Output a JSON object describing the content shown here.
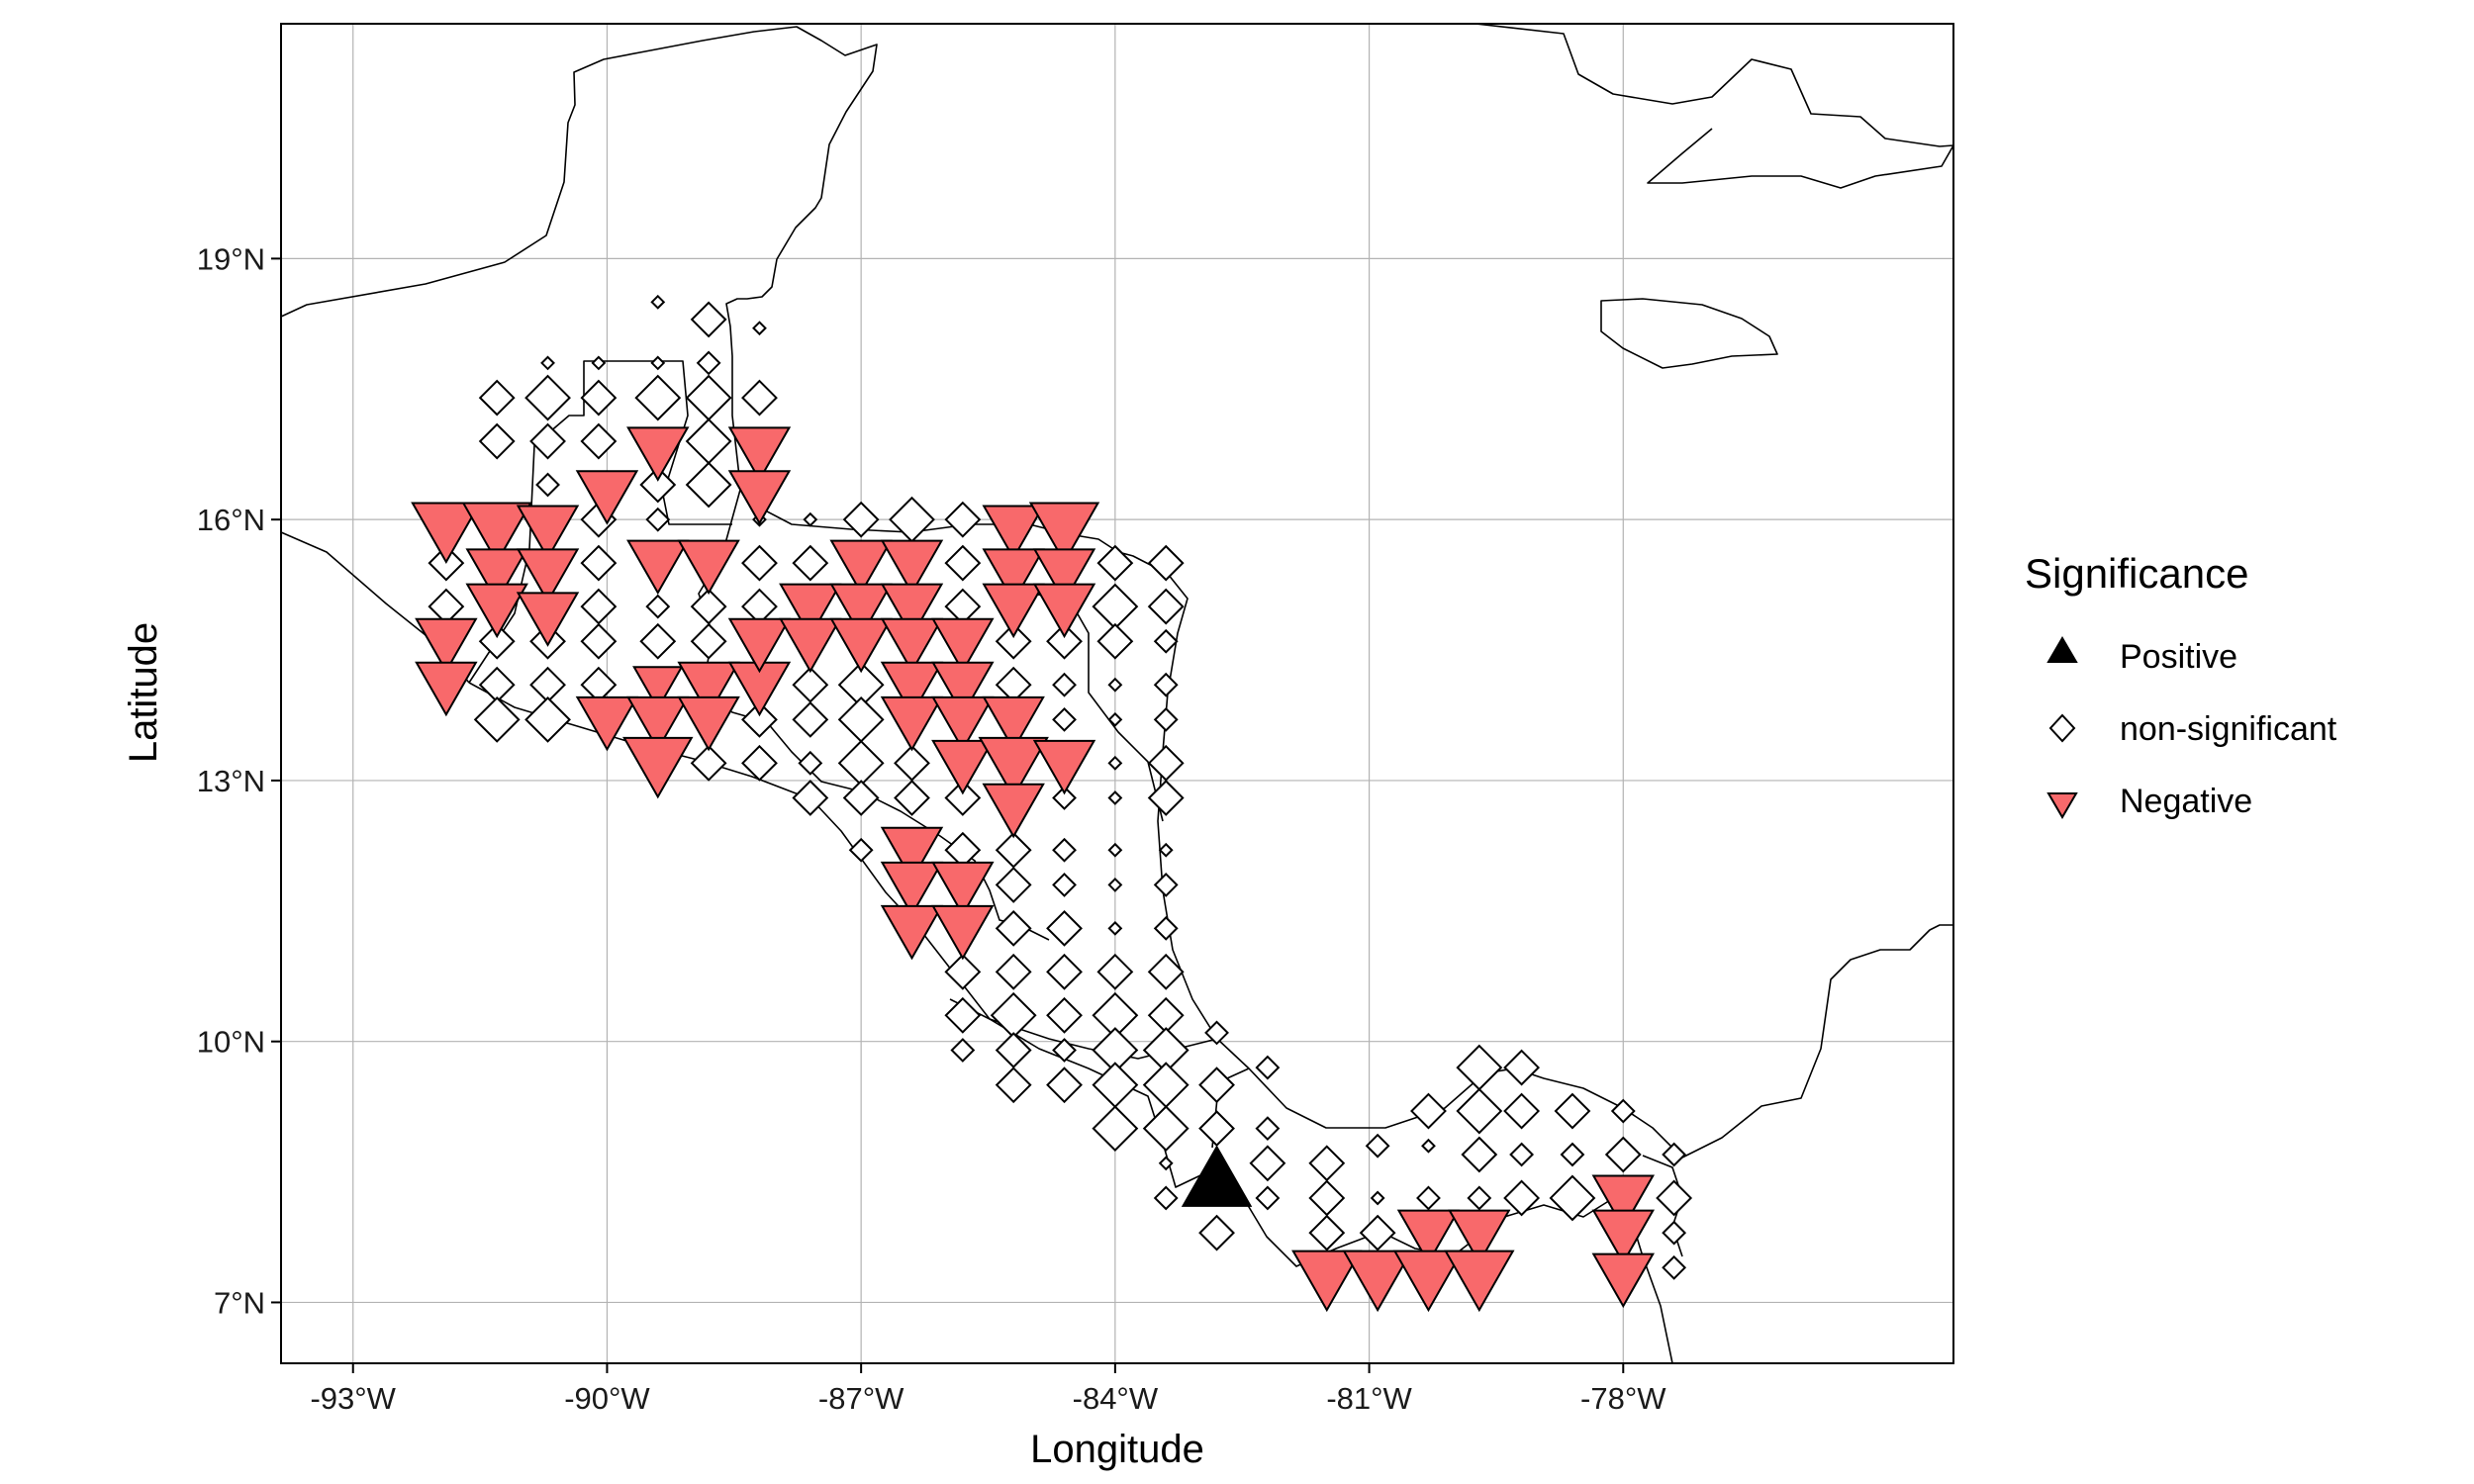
{
  "map": {
    "xlabel": "Longitude",
    "ylabel": "Latitude",
    "x_ticks": [
      {
        "value": -93,
        "label": "-93°W"
      },
      {
        "value": -90,
        "label": "-90°W"
      },
      {
        "value": -87,
        "label": "-87°W"
      },
      {
        "value": -84,
        "label": "-84°W"
      },
      {
        "value": -81,
        "label": "-81°W"
      },
      {
        "value": -78,
        "label": "-78°W"
      }
    ],
    "y_ticks": [
      {
        "value": 7,
        "label": "7°N"
      },
      {
        "value": 10,
        "label": "10°N"
      },
      {
        "value": 13,
        "label": "13°N"
      },
      {
        "value": 16,
        "label": "16°N"
      },
      {
        "value": 19,
        "label": "19°N"
      }
    ],
    "xlim": [
      -93.85,
      -74.1
    ],
    "ylim": [
      6.3,
      21.7
    ],
    "grid": true,
    "coastline_color": "#000000",
    "colors": {
      "positive": "#000000",
      "nonsignificant": "#ffffff",
      "negative": "#f8696b",
      "outline": "#000000",
      "grid": "#b3b3b3"
    },
    "legend": {
      "title": "Significance",
      "placement": "right",
      "items": [
        {
          "label": "Positive",
          "shape": "triangle-up",
          "color": "#000000"
        },
        {
          "label": "non-significant",
          "shape": "diamond",
          "color": "#ffffff"
        },
        {
          "label": "Negative",
          "shape": "triangle-down",
          "color": "#f8696b"
        }
      ]
    }
  },
  "chart_data": {
    "type": "scatter",
    "xlabel": "Longitude",
    "ylabel": "Latitude",
    "xlim": [
      -93.85,
      -74.1
    ],
    "ylim": [
      6.3,
      21.7
    ],
    "grid": true,
    "legend_title": "Significance",
    "legend_position": "right",
    "size_levels": [
      1,
      2,
      3,
      4,
      5
    ],
    "series": [
      {
        "name": "Positive",
        "marker": "triangle-up",
        "points": [
          [
            -82.8,
            8.4,
            5
          ]
        ]
      },
      {
        "name": "Negative",
        "marker": "triangle-down",
        "points": [
          [
            -91.9,
            15.9,
            5
          ],
          [
            -91.3,
            15.9,
            5
          ],
          [
            -90.7,
            15.9,
            4
          ],
          [
            -91.3,
            15.4,
            4
          ],
          [
            -90.7,
            15.4,
            4
          ],
          [
            -91.3,
            15.0,
            4
          ],
          [
            -90.7,
            14.9,
            4
          ],
          [
            -91.9,
            14.6,
            4
          ],
          [
            -91.9,
            14.1,
            4
          ],
          [
            -89.4,
            16.8,
            4
          ],
          [
            -88.2,
            16.8,
            4
          ],
          [
            -90.0,
            16.3,
            4
          ],
          [
            -88.2,
            16.3,
            4
          ],
          [
            -89.4,
            15.5,
            4
          ],
          [
            -88.8,
            15.5,
            4
          ],
          [
            -89.4,
            14.1,
            3
          ],
          [
            -88.8,
            14.1,
            4
          ],
          [
            -88.2,
            14.1,
            4
          ],
          [
            -90.0,
            13.7,
            4
          ],
          [
            -89.4,
            13.7,
            4
          ],
          [
            -88.8,
            13.7,
            4
          ],
          [
            -89.4,
            13.2,
            5
          ],
          [
            -87.0,
            15.5,
            4
          ],
          [
            -86.4,
            15.5,
            4
          ],
          [
            -87.6,
            15.0,
            4
          ],
          [
            -87.0,
            15.0,
            4
          ],
          [
            -86.4,
            15.0,
            4
          ],
          [
            -88.2,
            14.6,
            4
          ],
          [
            -87.6,
            14.6,
            4
          ],
          [
            -87.0,
            14.6,
            4
          ],
          [
            -86.4,
            14.6,
            4
          ],
          [
            -85.8,
            14.6,
            4
          ],
          [
            -86.4,
            14.1,
            4
          ],
          [
            -85.8,
            14.1,
            4
          ],
          [
            -86.4,
            13.7,
            4
          ],
          [
            -85.8,
            13.7,
            4
          ],
          [
            -85.2,
            13.7,
            4
          ],
          [
            -85.8,
            13.2,
            4
          ],
          [
            -85.2,
            13.2,
            5
          ],
          [
            -84.6,
            13.2,
            4
          ],
          [
            -85.2,
            12.7,
            4
          ],
          [
            -85.2,
            15.9,
            4
          ],
          [
            -84.6,
            15.9,
            5
          ],
          [
            -85.2,
            15.4,
            4
          ],
          [
            -84.6,
            15.4,
            4
          ],
          [
            -85.2,
            15.0,
            4
          ],
          [
            -84.6,
            15.0,
            4
          ],
          [
            -86.4,
            12.2,
            4
          ],
          [
            -86.4,
            11.8,
            4
          ],
          [
            -85.8,
            11.8,
            4
          ],
          [
            -86.4,
            11.3,
            4
          ],
          [
            -85.8,
            11.3,
            4
          ],
          [
            -80.3,
            7.8,
            4
          ],
          [
            -79.7,
            7.8,
            4
          ],
          [
            -81.5,
            7.3,
            5
          ],
          [
            -80.9,
            7.3,
            5
          ],
          [
            -80.3,
            7.3,
            5
          ],
          [
            -79.7,
            7.3,
            5
          ],
          [
            -78.0,
            8.2,
            4
          ],
          [
            -78.0,
            7.8,
            4
          ],
          [
            -78.0,
            7.3,
            4
          ]
        ]
      },
      {
        "name": "non-significant",
        "marker": "diamond",
        "points": [
          [
            -89.4,
            18.5,
            1
          ],
          [
            -88.8,
            18.3,
            3
          ],
          [
            -88.2,
            18.2,
            1
          ],
          [
            -91.3,
            17.4,
            3
          ],
          [
            -90.7,
            17.8,
            1
          ],
          [
            -90.1,
            17.8,
            1
          ],
          [
            -89.4,
            17.8,
            1
          ],
          [
            -88.8,
            17.8,
            2
          ],
          [
            -88.2,
            17.4,
            3
          ],
          [
            -90.7,
            17.4,
            4
          ],
          [
            -90.1,
            17.4,
            3
          ],
          [
            -89.4,
            17.4,
            4
          ],
          [
            -88.8,
            17.4,
            4
          ],
          [
            -91.3,
            16.9,
            3
          ],
          [
            -90.7,
            16.9,
            3
          ],
          [
            -90.1,
            16.9,
            3
          ],
          [
            -89.4,
            16.4,
            3
          ],
          [
            -88.8,
            16.9,
            4
          ],
          [
            -88.8,
            16.4,
            4
          ],
          [
            -90.7,
            16.4,
            2
          ],
          [
            -89.4,
            16.0,
            2
          ],
          [
            -88.2,
            16.0,
            1
          ],
          [
            -87.6,
            16.0,
            1
          ],
          [
            -87.0,
            16.0,
            3
          ],
          [
            -86.4,
            16.0,
            4
          ],
          [
            -85.8,
            16.0,
            3
          ],
          [
            -91.9,
            15.5,
            3
          ],
          [
            -90.1,
            16.0,
            3
          ],
          [
            -90.1,
            15.5,
            3
          ],
          [
            -88.2,
            15.5,
            3
          ],
          [
            -87.6,
            15.5,
            3
          ],
          [
            -85.8,
            15.5,
            3
          ],
          [
            -84.0,
            15.5,
            3
          ],
          [
            -83.4,
            15.5,
            3
          ],
          [
            -84.0,
            15.0,
            4
          ],
          [
            -83.4,
            15.0,
            3
          ],
          [
            -91.9,
            15.0,
            3
          ],
          [
            -90.1,
            15.0,
            3
          ],
          [
            -89.4,
            15.0,
            2
          ],
          [
            -88.8,
            15.0,
            3
          ],
          [
            -88.2,
            15.0,
            3
          ],
          [
            -85.8,
            15.0,
            3
          ],
          [
            -84.6,
            14.6,
            3
          ],
          [
            -84.0,
            14.6,
            3
          ],
          [
            -83.4,
            14.6,
            2
          ],
          [
            -91.3,
            14.6,
            3
          ],
          [
            -90.7,
            14.6,
            3
          ],
          [
            -90.1,
            14.6,
            3
          ],
          [
            -89.4,
            14.6,
            3
          ],
          [
            -88.8,
            14.6,
            3
          ],
          [
            -85.2,
            14.6,
            3
          ],
          [
            -84.6,
            14.1,
            2
          ],
          [
            -84.0,
            14.1,
            1
          ],
          [
            -83.4,
            14.1,
            2
          ],
          [
            -91.3,
            14.1,
            3
          ],
          [
            -90.7,
            14.1,
            3
          ],
          [
            -90.1,
            14.1,
            3
          ],
          [
            -87.6,
            14.1,
            3
          ],
          [
            -87.0,
            14.1,
            4
          ],
          [
            -85.2,
            14.1,
            3
          ],
          [
            -91.3,
            13.7,
            4
          ],
          [
            -90.7,
            13.7,
            4
          ],
          [
            -88.2,
            13.7,
            3
          ],
          [
            -87.6,
            13.7,
            3
          ],
          [
            -87.0,
            13.7,
            4
          ],
          [
            -84.6,
            13.7,
            2
          ],
          [
            -84.0,
            13.7,
            1
          ],
          [
            -83.4,
            13.7,
            2
          ],
          [
            -88.8,
            13.2,
            3
          ],
          [
            -88.2,
            13.2,
            3
          ],
          [
            -87.6,
            13.2,
            2
          ],
          [
            -87.0,
            13.2,
            4
          ],
          [
            -86.4,
            13.2,
            3
          ],
          [
            -84.0,
            13.2,
            1
          ],
          [
            -83.4,
            13.2,
            3
          ],
          [
            -87.6,
            12.8,
            3
          ],
          [
            -87.0,
            12.8,
            3
          ],
          [
            -86.4,
            12.8,
            3
          ],
          [
            -85.8,
            12.8,
            3
          ],
          [
            -84.6,
            12.8,
            2
          ],
          [
            -84.0,
            12.8,
            1
          ],
          [
            -83.4,
            12.8,
            3
          ],
          [
            -87.0,
            12.2,
            2
          ],
          [
            -85.8,
            12.2,
            3
          ],
          [
            -85.2,
            12.2,
            3
          ],
          [
            -84.6,
            12.2,
            2
          ],
          [
            -84.0,
            12.2,
            1
          ],
          [
            -83.4,
            12.2,
            1
          ],
          [
            -85.2,
            11.8,
            3
          ],
          [
            -84.6,
            11.8,
            2
          ],
          [
            -84.0,
            11.8,
            1
          ],
          [
            -83.4,
            11.8,
            2
          ],
          [
            -85.2,
            11.3,
            3
          ],
          [
            -84.6,
            11.3,
            3
          ],
          [
            -84.0,
            11.3,
            1
          ],
          [
            -83.4,
            11.3,
            2
          ],
          [
            -85.8,
            10.8,
            3
          ],
          [
            -85.2,
            10.8,
            3
          ],
          [
            -84.6,
            10.8,
            3
          ],
          [
            -84.0,
            10.8,
            3
          ],
          [
            -83.4,
            10.8,
            3
          ],
          [
            -85.8,
            10.3,
            3
          ],
          [
            -85.2,
            10.3,
            4
          ],
          [
            -84.6,
            10.3,
            3
          ],
          [
            -84.0,
            10.3,
            4
          ],
          [
            -83.4,
            10.3,
            3
          ],
          [
            -85.8,
            9.9,
            2
          ],
          [
            -85.2,
            9.9,
            3
          ],
          [
            -84.6,
            9.9,
            2
          ],
          [
            -84.0,
            9.9,
            4
          ],
          [
            -83.4,
            9.9,
            4
          ],
          [
            -82.8,
            10.1,
            2
          ],
          [
            -85.2,
            9.5,
            3
          ],
          [
            -84.6,
            9.5,
            3
          ],
          [
            -84.0,
            9.5,
            4
          ],
          [
            -83.4,
            9.5,
            4
          ],
          [
            -82.8,
            9.5,
            3
          ],
          [
            -82.2,
            9.7,
            2
          ],
          [
            -84.0,
            9.0,
            4
          ],
          [
            -83.4,
            9.0,
            4
          ],
          [
            -82.8,
            9.0,
            3
          ],
          [
            -82.2,
            9.0,
            2
          ],
          [
            -83.4,
            8.6,
            1
          ],
          [
            -82.2,
            8.6,
            3
          ],
          [
            -81.5,
            8.6,
            3
          ],
          [
            -80.9,
            8.8,
            2
          ],
          [
            -80.3,
            8.8,
            1
          ],
          [
            -83.4,
            8.2,
            2
          ],
          [
            -82.2,
            8.2,
            2
          ],
          [
            -81.5,
            8.2,
            3
          ],
          [
            -80.9,
            8.2,
            1
          ],
          [
            -80.3,
            8.2,
            2
          ],
          [
            -82.8,
            7.8,
            3
          ],
          [
            -81.5,
            7.8,
            3
          ],
          [
            -80.9,
            7.8,
            3
          ],
          [
            -80.3,
            9.2,
            3
          ],
          [
            -79.7,
            9.2,
            4
          ],
          [
            -79.2,
            9.2,
            3
          ],
          [
            -78.6,
            9.2,
            3
          ],
          [
            -78.0,
            9.2,
            2
          ],
          [
            -79.7,
            9.7,
            4
          ],
          [
            -79.2,
            9.7,
            3
          ],
          [
            -79.7,
            8.7,
            3
          ],
          [
            -79.2,
            8.7,
            2
          ],
          [
            -78.6,
            8.7,
            2
          ],
          [
            -78.0,
            8.7,
            3
          ],
          [
            -77.4,
            8.7,
            2
          ],
          [
            -79.2,
            8.2,
            3
          ],
          [
            -78.6,
            8.2,
            4
          ],
          [
            -77.4,
            8.2,
            3
          ],
          [
            -77.4,
            7.8,
            2
          ],
          [
            -77.4,
            7.4,
            2
          ],
          [
            -79.7,
            8.2,
            2
          ]
        ]
      }
    ]
  }
}
